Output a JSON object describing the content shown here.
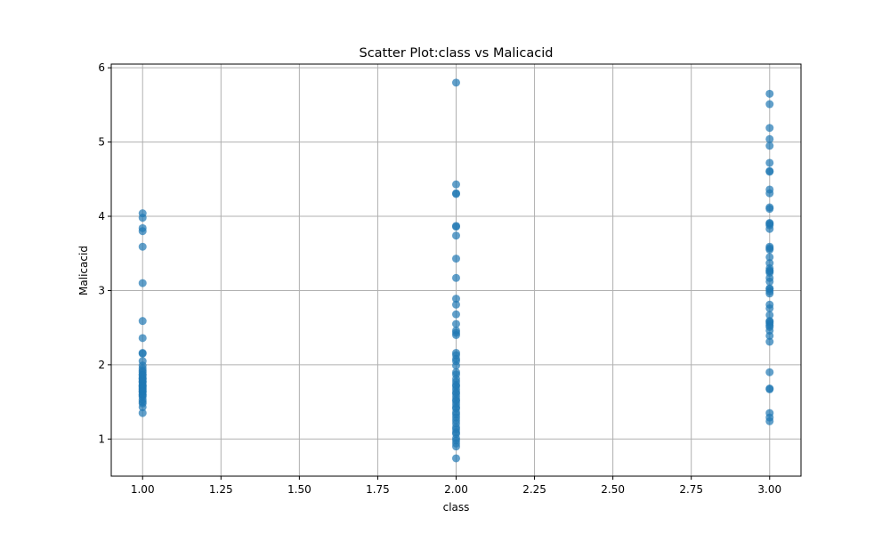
{
  "chart_data": {
    "type": "scatter",
    "title": "Scatter Plot:class vs Malicacid",
    "xlabel": "class",
    "ylabel": "Malicacid",
    "xlim": [
      0.9,
      3.1
    ],
    "ylim": [
      0.5,
      6.05
    ],
    "xticks": [
      1.0,
      1.25,
      1.5,
      1.75,
      2.0,
      2.25,
      2.5,
      2.75,
      3.0
    ],
    "xtick_labels": [
      "1.00",
      "1.25",
      "1.50",
      "1.75",
      "2.00",
      "2.25",
      "2.50",
      "2.75",
      "3.00"
    ],
    "yticks": [
      1,
      2,
      3,
      4,
      5,
      6
    ],
    "ytick_labels": [
      "1",
      "2",
      "3",
      "4",
      "5",
      "6"
    ],
    "grid": true,
    "marker_color": "#1f77b4",
    "marker_opacity": 0.7,
    "series": [
      {
        "x_values": [
          1,
          1,
          1,
          1,
          1,
          1,
          1,
          1,
          1,
          1,
          1,
          1,
          1,
          1,
          1,
          1,
          1,
          1,
          1,
          1,
          1,
          1,
          1,
          1,
          1,
          1,
          1,
          1,
          1,
          1,
          1,
          1,
          1,
          1,
          1,
          1,
          1,
          1,
          1,
          1
        ],
        "y_values": [
          4.04,
          3.98,
          3.84,
          3.8,
          3.59,
          3.1,
          2.59,
          2.36,
          2.16,
          2.15,
          2.05,
          1.99,
          1.95,
          1.92,
          1.9,
          1.87,
          1.86,
          1.83,
          1.81,
          1.78,
          1.77,
          1.76,
          1.73,
          1.72,
          1.71,
          1.7,
          1.68,
          1.67,
          1.65,
          1.64,
          1.63,
          1.6,
          1.59,
          1.57,
          1.53,
          1.5,
          1.48,
          1.43,
          1.35,
          1.81
        ]
      },
      {
        "x_values": [
          2,
          2,
          2,
          2,
          2,
          2,
          2,
          2,
          2,
          2,
          2,
          2,
          2,
          2,
          2,
          2,
          2,
          2,
          2,
          2,
          2,
          2,
          2,
          2,
          2,
          2,
          2,
          2,
          2,
          2,
          2,
          2,
          2,
          2,
          2,
          2,
          2,
          2,
          2,
          2,
          2,
          2,
          2,
          2,
          2,
          2,
          2,
          2,
          2,
          2
        ],
        "y_values": [
          5.8,
          4.43,
          4.31,
          4.3,
          3.87,
          3.86,
          3.74,
          3.43,
          3.17,
          2.89,
          2.81,
          2.68,
          2.55,
          2.46,
          2.43,
          2.4,
          2.16,
          2.13,
          2.08,
          2.05,
          1.99,
          1.9,
          1.87,
          1.81,
          1.77,
          1.73,
          1.71,
          1.67,
          1.63,
          1.61,
          1.57,
          1.53,
          1.51,
          1.47,
          1.43,
          1.41,
          1.36,
          1.33,
          1.29,
          1.25,
          1.21,
          1.16,
          1.13,
          1.09,
          1.07,
          1.01,
          0.98,
          0.94,
          0.9,
          0.74
        ]
      },
      {
        "x_values": [
          3,
          3,
          3,
          3,
          3,
          3,
          3,
          3,
          3,
          3,
          3,
          3,
          3,
          3,
          3,
          3,
          3,
          3,
          3,
          3,
          3,
          3,
          3,
          3,
          3,
          3,
          3,
          3,
          3,
          3,
          3,
          3,
          3,
          3,
          3,
          3,
          3,
          3,
          3,
          3,
          3,
          3,
          3,
          3,
          3,
          3,
          3,
          3
        ],
        "y_values": [
          5.65,
          5.51,
          5.19,
          5.04,
          4.95,
          4.72,
          4.61,
          4.6,
          4.36,
          4.31,
          4.12,
          4.1,
          3.91,
          3.9,
          3.88,
          3.83,
          3.59,
          3.57,
          3.55,
          3.45,
          3.37,
          3.3,
          3.27,
          3.26,
          3.24,
          3.17,
          3.12,
          3.03,
          3.02,
          2.99,
          2.96,
          2.81,
          2.76,
          2.67,
          2.59,
          2.58,
          2.56,
          2.53,
          2.51,
          2.46,
          2.39,
          2.31,
          1.9,
          1.68,
          1.67,
          1.35,
          1.29,
          1.24
        ]
      }
    ]
  }
}
